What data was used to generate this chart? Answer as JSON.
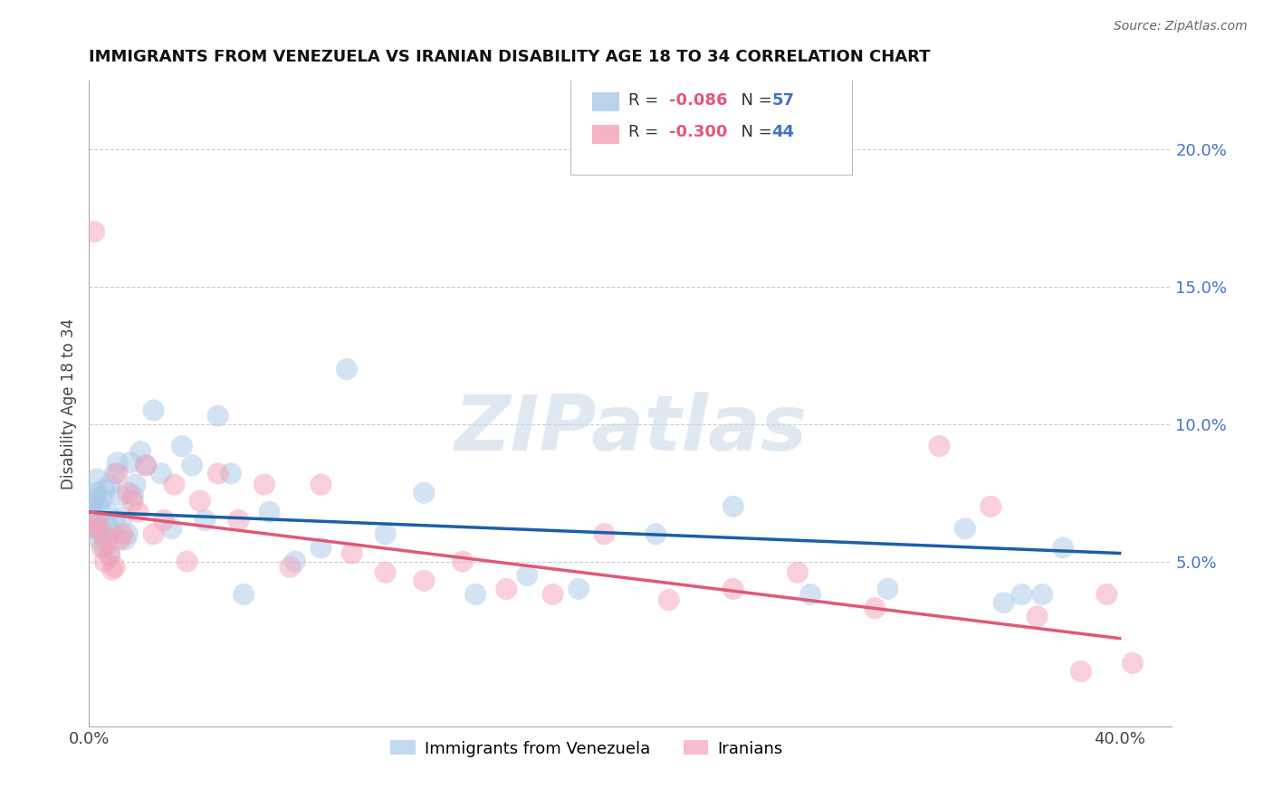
{
  "title": "IMMIGRANTS FROM VENEZUELA VS IRANIAN DISABILITY AGE 18 TO 34 CORRELATION CHART",
  "source": "Source: ZipAtlas.com",
  "ylabel": "Disability Age 18 to 34",
  "xlim": [
    0.0,
    0.42
  ],
  "ylim": [
    -0.01,
    0.225
  ],
  "yticks_right": [
    0.05,
    0.1,
    0.15,
    0.2
  ],
  "ytick_right_labels": [
    "5.0%",
    "10.0%",
    "15.0%",
    "20.0%"
  ],
  "legend_r1": "R = ",
  "legend_r1_val": "-0.086",
  "legend_n1": "  N = ",
  "legend_n1_val": "57",
  "legend_r2": "R = ",
  "legend_r2_val": "-0.300",
  "legend_n2": "  N = ",
  "legend_n2_val": "44",
  "color_blue": "#a8c8e8",
  "color_pink": "#f4a0b8",
  "line_blue": "#1a5fa8",
  "line_pink": "#e05878",
  "watermark": "ZIPatlas",
  "venezuela_x": [
    0.001,
    0.001,
    0.002,
    0.002,
    0.003,
    0.003,
    0.003,
    0.004,
    0.004,
    0.005,
    0.005,
    0.006,
    0.006,
    0.007,
    0.007,
    0.008,
    0.008,
    0.009,
    0.01,
    0.01,
    0.011,
    0.012,
    0.013,
    0.014,
    0.015,
    0.016,
    0.017,
    0.018,
    0.02,
    0.022,
    0.025,
    0.028,
    0.032,
    0.036,
    0.04,
    0.045,
    0.05,
    0.055,
    0.06,
    0.07,
    0.08,
    0.09,
    0.1,
    0.115,
    0.13,
    0.15,
    0.17,
    0.19,
    0.22,
    0.25,
    0.28,
    0.31,
    0.34,
    0.355,
    0.362,
    0.37,
    0.378
  ],
  "venezuela_y": [
    0.072,
    0.068,
    0.073,
    0.065,
    0.075,
    0.062,
    0.08,
    0.058,
    0.07,
    0.06,
    0.073,
    0.076,
    0.055,
    0.063,
    0.068,
    0.078,
    0.052,
    0.06,
    0.082,
    0.065,
    0.086,
    0.074,
    0.066,
    0.058,
    0.06,
    0.086,
    0.074,
    0.078,
    0.09,
    0.085,
    0.105,
    0.082,
    0.062,
    0.092,
    0.085,
    0.065,
    0.103,
    0.082,
    0.038,
    0.068,
    0.05,
    0.055,
    0.12,
    0.06,
    0.075,
    0.038,
    0.045,
    0.04,
    0.06,
    0.07,
    0.038,
    0.04,
    0.062,
    0.035,
    0.038,
    0.038,
    0.055
  ],
  "iranians_x": [
    0.001,
    0.002,
    0.003,
    0.004,
    0.005,
    0.006,
    0.007,
    0.008,
    0.009,
    0.01,
    0.011,
    0.012,
    0.013,
    0.015,
    0.017,
    0.019,
    0.022,
    0.025,
    0.029,
    0.033,
    0.038,
    0.043,
    0.05,
    0.058,
    0.068,
    0.078,
    0.09,
    0.102,
    0.115,
    0.13,
    0.145,
    0.162,
    0.18,
    0.2,
    0.225,
    0.25,
    0.275,
    0.305,
    0.33,
    0.35,
    0.368,
    0.385,
    0.395,
    0.405
  ],
  "iranians_y": [
    0.062,
    0.17,
    0.065,
    0.062,
    0.055,
    0.05,
    0.058,
    0.053,
    0.047,
    0.048,
    0.082,
    0.058,
    0.06,
    0.075,
    0.072,
    0.068,
    0.085,
    0.06,
    0.065,
    0.078,
    0.05,
    0.072,
    0.082,
    0.065,
    0.078,
    0.048,
    0.078,
    0.053,
    0.046,
    0.043,
    0.05,
    0.04,
    0.038,
    0.06,
    0.036,
    0.04,
    0.046,
    0.033,
    0.092,
    0.07,
    0.03,
    0.01,
    0.038,
    0.013
  ]
}
